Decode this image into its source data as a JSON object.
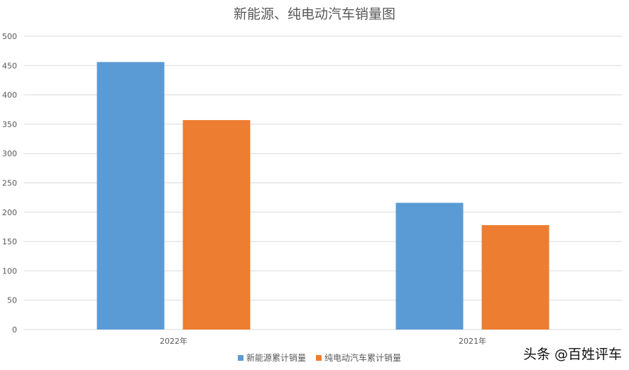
{
  "chart_data": {
    "type": "bar",
    "title": "新能源、纯电动汽车销量图",
    "categories": [
      "2022年",
      "2021年"
    ],
    "series": [
      {
        "name": "新能源累计销量",
        "values": [
          456,
          216
        ],
        "color": "#5B9BD5"
      },
      {
        "name": "纯电动汽车累计销量",
        "values": [
          357,
          178
        ],
        "color": "#ED7D31"
      }
    ],
    "ylim": [
      0,
      500
    ],
    "yticks": [
      0,
      50,
      100,
      150,
      200,
      250,
      300,
      350,
      400,
      450,
      500
    ],
    "grid": true,
    "legend_position": "bottom"
  },
  "watermark": "头条 @百姓评车"
}
